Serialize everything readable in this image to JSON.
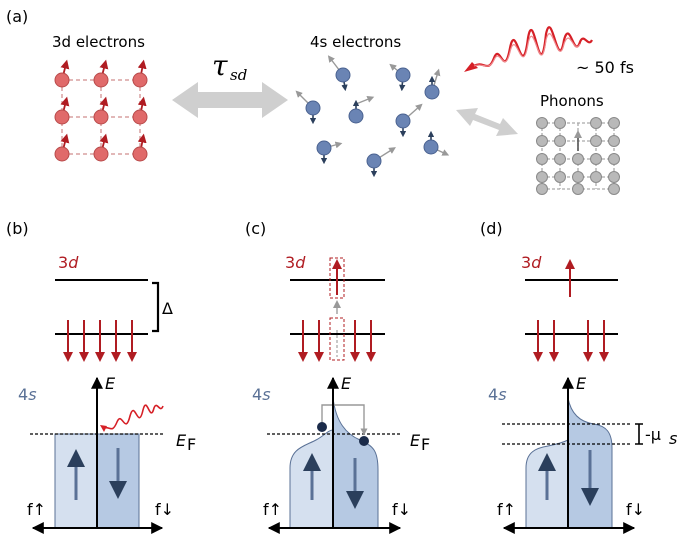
{
  "panels": {
    "a": {
      "label": "(a)",
      "d_electrons": "3d electrons",
      "s_electrons": "4s electrons",
      "tau": "τ",
      "tau_sub": "sd",
      "pulse": "~ 50 fs",
      "phonons": "Phonons"
    },
    "b": {
      "label": "(b)",
      "level_3d": "3d",
      "delta": "Δ",
      "band_4s": "4s",
      "energy": "E",
      "fermi": "E",
      "fermi_sub": "F",
      "f_up": "f↑",
      "f_down": "f↓"
    },
    "c": {
      "label": "(c)",
      "level_3d": "3d",
      "band_4s": "4s",
      "energy": "E",
      "fermi": "E",
      "fermi_sub": "F",
      "f_up": "f↑",
      "f_down": "f↓"
    },
    "d": {
      "label": "(d)",
      "level_3d": "3d",
      "band_4s": "4s",
      "energy": "E",
      "mu": "-μ",
      "mu_sub": "s",
      "f_up": "f↑",
      "f_down": "f↓"
    }
  },
  "colors": {
    "d_electron": "#e06a6a",
    "spin_arrow": "#b01c22",
    "s_electron": "#6a84b4",
    "band_light": "#d5e0ef",
    "band_dark": "#b6c9e3",
    "phonon": "#b9b9b9"
  }
}
